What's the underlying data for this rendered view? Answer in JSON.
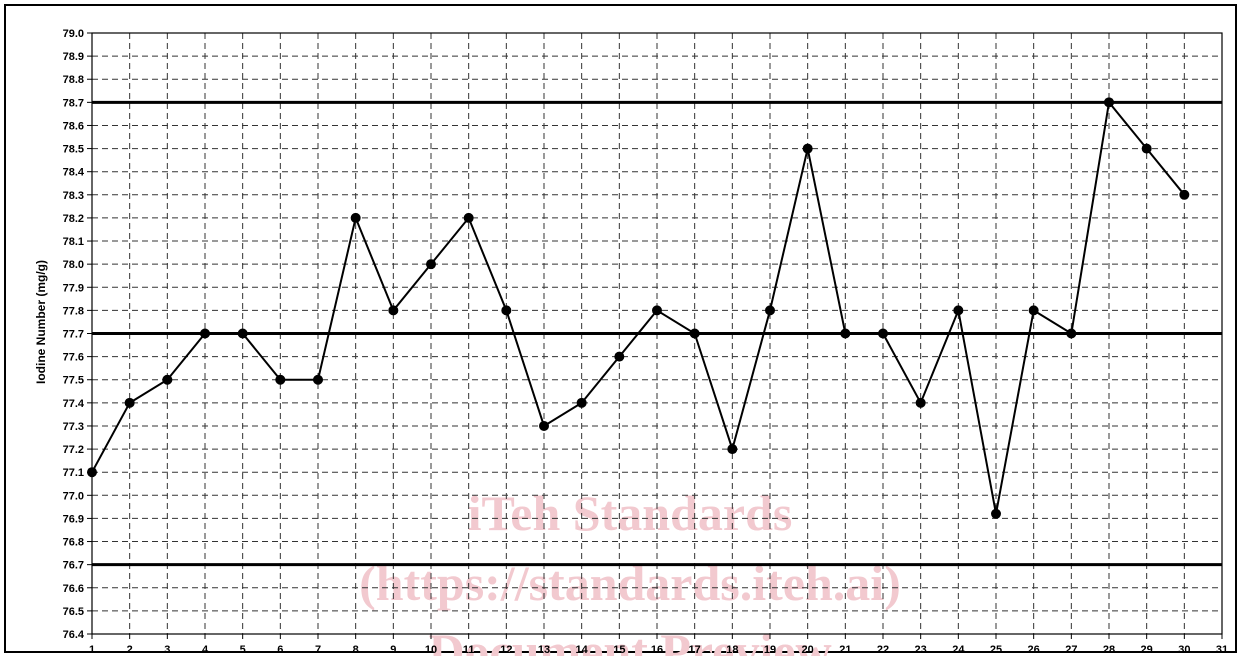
{
  "chart_data": {
    "type": "line",
    "title": "",
    "xlabel": "",
    "ylabel": "Iodine Number (mg/g)",
    "x": [
      1,
      2,
      3,
      4,
      5,
      6,
      7,
      8,
      9,
      10,
      11,
      12,
      13,
      14,
      15,
      16,
      17,
      18,
      19,
      20,
      21,
      22,
      23,
      24,
      25,
      26,
      27,
      28,
      29,
      30
    ],
    "series": [
      {
        "values": [
          77.1,
          77.4,
          77.5,
          77.7,
          77.7,
          77.5,
          77.5,
          78.2,
          77.8,
          78.0,
          78.2,
          77.8,
          77.3,
          77.4,
          77.6,
          77.8,
          77.7,
          77.2,
          77.8,
          78.5,
          77.7,
          77.7,
          77.4,
          77.8,
          76.92,
          77.8,
          77.7,
          78.7,
          78.5,
          78.3
        ]
      }
    ],
    "reference_lines": [
      78.7,
      77.7,
      76.7
    ],
    "xlim": [
      1,
      31
    ],
    "ylim": [
      76.4,
      79.0
    ],
    "x_ticks": [
      "1",
      "2",
      "3",
      "4",
      "5",
      "6",
      "7",
      "8",
      "9",
      "10",
      "11",
      "12",
      "13",
      "14",
      "15",
      "16",
      "17",
      "18",
      "19",
      "20",
      "21",
      "22",
      "23",
      "24",
      "25",
      "26",
      "27",
      "28",
      "29",
      "30",
      "31"
    ],
    "y_ticks": [
      "76.4",
      "76.5",
      "76.6",
      "76.7",
      "76.8",
      "76.9",
      "77.0",
      "77.1",
      "77.2",
      "77.3",
      "77.4",
      "77.5",
      "77.6",
      "77.7",
      "77.8",
      "77.9",
      "78.0",
      "78.1",
      "78.2",
      "78.3",
      "78.4",
      "78.5",
      "78.6",
      "78.7",
      "78.8",
      "78.9",
      "79.0"
    ],
    "grid": true,
    "legend": false
  },
  "watermark": [
    "iTeh Standards",
    "(https://standards.iteh.ai)",
    "Document Preview"
  ]
}
